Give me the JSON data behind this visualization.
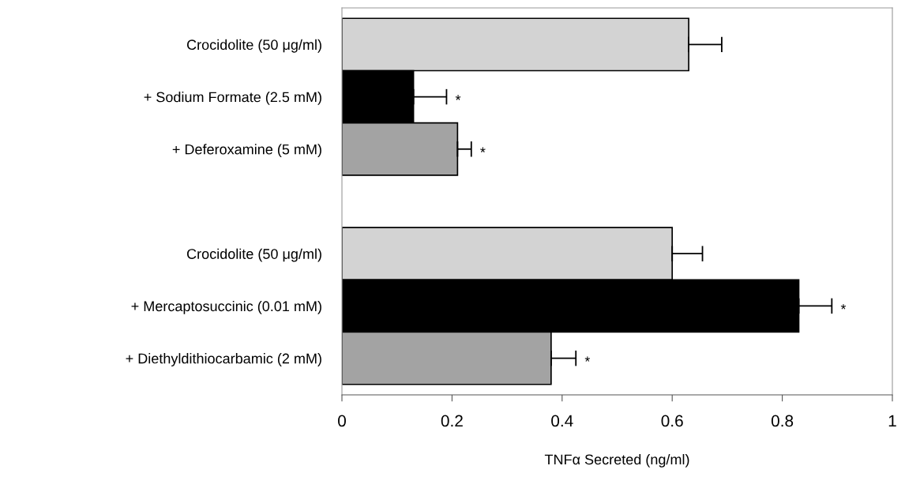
{
  "chart_data": {
    "type": "bar",
    "orientation": "horizontal",
    "xlabel": "TNFα Secreted (ng/ml)",
    "categories": [
      "Crocidolite (50 μg/ml)",
      "+ Sodium Formate (2.5 mM)",
      "+ Deferoxamine (5 mM)",
      null,
      "Crocidolite (50 μg/ml)",
      "+ Mercaptosuccinic (0.01 mM)",
      "+ Diethyldithiocarbamic (2 mM)"
    ],
    "values": [
      0.63,
      0.13,
      0.21,
      null,
      0.6,
      0.83,
      0.38
    ],
    "colors": [
      "#d3d3d3",
      "#000000",
      "#a3a3a3",
      null,
      "#d3d3d3",
      "#000000",
      "#a3a3a3"
    ],
    "errors": [
      [
        0.63,
        0.69
      ],
      [
        0.13,
        0.19
      ],
      [
        0.21,
        0.235
      ],
      null,
      [
        0.6,
        0.655
      ],
      [
        0.83,
        0.89
      ],
      [
        0.38,
        0.425
      ]
    ],
    "xlim": [
      0,
      1
    ],
    "xticks": [
      0,
      0.2,
      0.4,
      0.6,
      0.8,
      1
    ],
    "value_labels": [
      null,
      "*",
      "*",
      null,
      null,
      "*",
      "*"
    ],
    "grid": false,
    "legend": false
  }
}
